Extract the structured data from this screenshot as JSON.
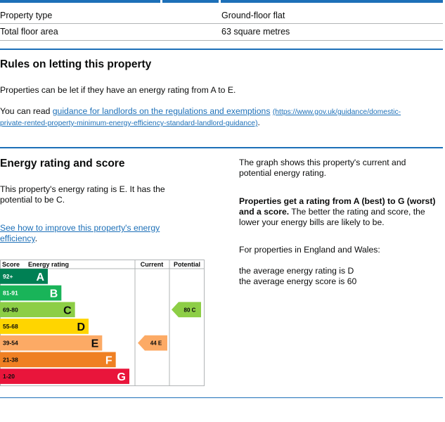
{
  "property": {
    "rows": [
      {
        "label": "Property type",
        "value": "Ground-floor flat"
      },
      {
        "label": "Total floor area",
        "value": "63 square metres"
      }
    ]
  },
  "letting": {
    "heading": "Rules on letting this property",
    "intro": "Properties can be let if they have an energy rating from A to E.",
    "read_prefix": "You can read ",
    "guidance_link": "guidance for landlords on the regulations and exemptions",
    "guidance_url_text_1": "(https://www.gov.uk/guidance/domestic-",
    "guidance_url_text_2": "private-rented-property-minimum-energy-efficiency-standard-landlord-guidance)",
    "guidance_suffix": "."
  },
  "energy": {
    "heading": "Energy rating and score",
    "rating_line_1": "This property's energy rating is E. It has the",
    "rating_line_2": "potential to be C.",
    "improve_link_1": "See how to improve this property's energy",
    "improve_link_2": "efficiency",
    "improve_suffix": ".",
    "graph_desc_1": "The graph shows this property's current and",
    "graph_desc_2": "potential energy rating.",
    "bold_1": "Properties get a rating from A (best) to G (worst)",
    "bold_2": "and a score.",
    "better_1": " The better the rating and score, the",
    "better_2": "lower your energy bills are likely to be.",
    "england_wales": "For properties in England and Wales:",
    "avg_rating": "the average energy rating is D",
    "avg_score": "the average energy score is 60"
  },
  "chart_data": {
    "type": "bar",
    "headers": {
      "score": "Score",
      "rating": "Energy rating",
      "current": "Current",
      "potential": "Potential"
    },
    "bands": [
      {
        "score": "92+",
        "letter": "A",
        "color": "#008054"
      },
      {
        "score": "81-91",
        "letter": "B",
        "color": "#19b459"
      },
      {
        "score": "69-80",
        "letter": "C",
        "color": "#8dce46"
      },
      {
        "score": "55-68",
        "letter": "D",
        "color": "#ffd500"
      },
      {
        "score": "39-54",
        "letter": "E",
        "color": "#fcaa65"
      },
      {
        "score": "21-38",
        "letter": "F",
        "color": "#ef8023"
      },
      {
        "score": "1-20",
        "letter": "G",
        "color": "#e9153b"
      }
    ],
    "current": {
      "score": 44,
      "letter": "E",
      "label": "44  E",
      "color": "#fcaa65"
    },
    "potential": {
      "score": 80,
      "letter": "C",
      "label": "80  C",
      "color": "#8dce46"
    }
  }
}
